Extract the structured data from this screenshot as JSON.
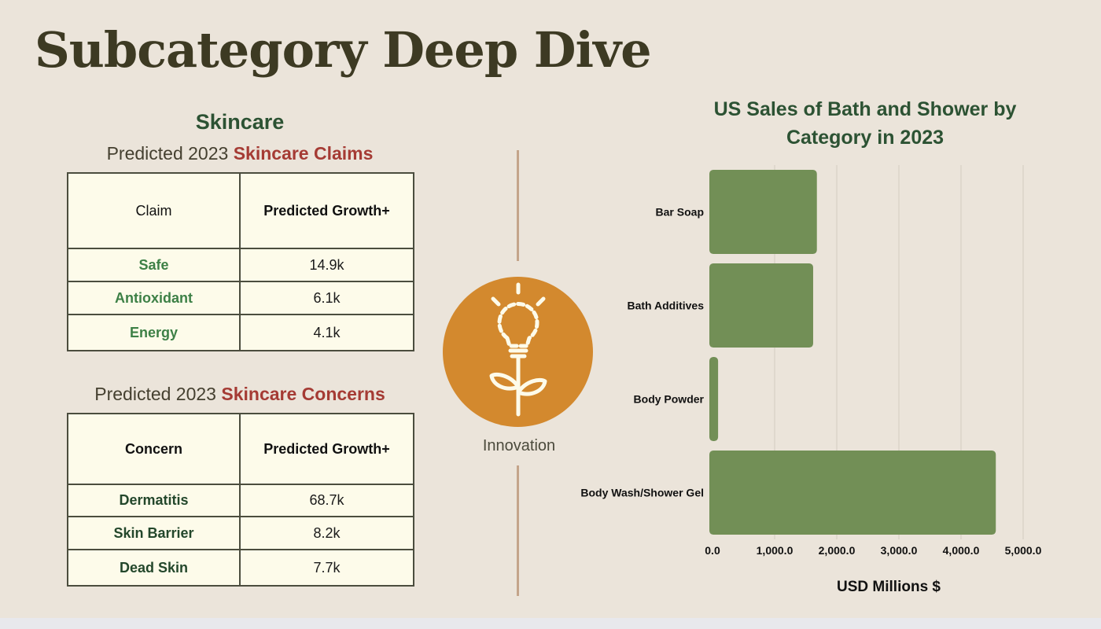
{
  "page": {
    "title": "Subcategory Deep Dive"
  },
  "skincare": {
    "section_title": "Skincare",
    "claims": {
      "caption_prefix": "Predicted 2023",
      "caption_highlight": "Skincare Claims",
      "headers": [
        "Claim",
        "Predicted Growth+"
      ],
      "rows": [
        {
          "name": "Safe",
          "value": "14.9k"
        },
        {
          "name": "Antioxidant",
          "value": "6.1k"
        },
        {
          "name": "Energy",
          "value": "4.1k"
        }
      ]
    },
    "concerns": {
      "caption_prefix": "Predicted 2023",
      "caption_highlight": "Skincare Concerns",
      "headers": [
        "Concern",
        "Predicted Growth+"
      ],
      "rows": [
        {
          "name": "Dermatitis",
          "value": "68.7k"
        },
        {
          "name": "Skin Barrier",
          "value": "8.2k"
        },
        {
          "name": "Dead Skin",
          "value": "7.7k"
        }
      ]
    }
  },
  "innovation": {
    "icon": "lightbulb-flower-icon",
    "label": "Innovation"
  },
  "colors": {
    "background": "#ebe4da",
    "title": "#3d3a23",
    "section_green": "#2c5233",
    "highlight_red": "#a53b34",
    "bar_green": "#728f56",
    "innovation_orange": "#d3892e",
    "divider": "#c4a48a"
  },
  "chart_data": {
    "type": "bar",
    "orientation": "horizontal",
    "title": "US Sales of Bath and Shower by Category in 2023",
    "categories": [
      "Bar Soap",
      "Bath Additives",
      "Body Powder",
      "Body Wash/Shower Gel"
    ],
    "values": [
      1680,
      1620,
      90,
      4560
    ],
    "xlabel": "USD Millions $",
    "ylabel": "",
    "xlim": [
      0,
      5000
    ],
    "ticks": [
      0,
      1000,
      2000,
      3000,
      4000,
      5000
    ],
    "tick_labels": [
      "0.0",
      "1,000.0",
      "2,000.0",
      "3,000.0",
      "4,000.0",
      "5,000.0"
    ],
    "grid": true,
    "legend": "none"
  }
}
